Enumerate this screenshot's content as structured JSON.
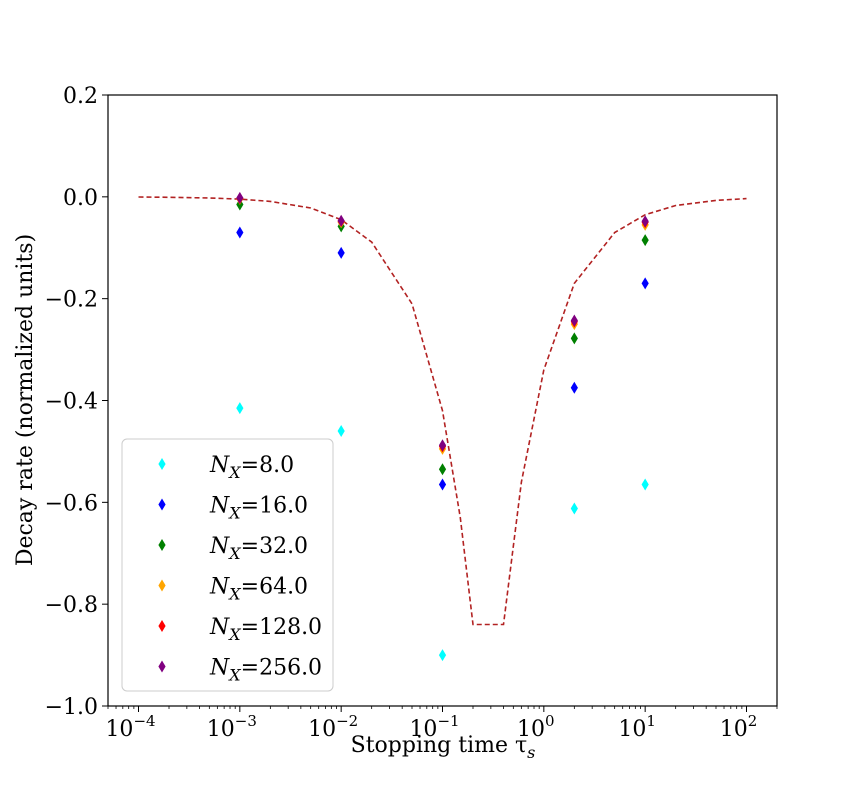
{
  "chart_data": {
    "type": "scatter",
    "title": "",
    "xlabel": "Stopping time τ",
    "xlabel_sub": "s",
    "ylabel": "Decay rate (normalized units)",
    "xscale": "log",
    "xlim": [
      5e-05,
      200
    ],
    "ylim": [
      -1.0,
      0.2
    ],
    "xticks": [
      {
        "value": 0.0001,
        "base": "10",
        "exp": "−4"
      },
      {
        "value": 0.001,
        "base": "10",
        "exp": "−3"
      },
      {
        "value": 0.01,
        "base": "10",
        "exp": "−2"
      },
      {
        "value": 0.1,
        "base": "10",
        "exp": "−1"
      },
      {
        "value": 1,
        "base": "10",
        "exp": "0"
      },
      {
        "value": 10,
        "base": "10",
        "exp": "1"
      },
      {
        "value": 100,
        "base": "10",
        "exp": "2"
      }
    ],
    "yticks": [
      {
        "value": 0.2,
        "label": "0.2"
      },
      {
        "value": 0.0,
        "label": "0.0"
      },
      {
        "value": -0.2,
        "label": "−0.2"
      },
      {
        "value": -0.4,
        "label": "−0.4"
      },
      {
        "value": -0.6,
        "label": "−0.6"
      },
      {
        "value": -0.8,
        "label": "−0.8"
      },
      {
        "value": -1.0,
        "label": "−1.0"
      }
    ],
    "grid": false,
    "legend_position": "lower-left",
    "series": [
      {
        "name": "=8.0",
        "color": "#00ffff",
        "marker": "diamond",
        "x": [
          0.001,
          0.01,
          0.1,
          2,
          10
        ],
        "y": [
          -0.415,
          -0.46,
          -0.9,
          -0.612,
          -0.565
        ]
      },
      {
        "name": "=16.0",
        "color": "#0000ff",
        "marker": "diamond",
        "x": [
          0.001,
          0.01,
          0.1,
          2,
          10
        ],
        "y": [
          -0.07,
          -0.11,
          -0.565,
          -0.375,
          -0.17
        ]
      },
      {
        "name": "=32.0",
        "color": "#008000",
        "marker": "diamond",
        "x": [
          0.001,
          0.01,
          0.1,
          2,
          10
        ],
        "y": [
          -0.015,
          -0.058,
          -0.535,
          -0.278,
          -0.085
        ]
      },
      {
        "name": "=64.0",
        "color": "#ffa500",
        "marker": "diamond",
        "x": [
          0.001,
          0.01,
          0.1,
          2,
          10
        ],
        "y": [
          -0.004,
          -0.05,
          -0.495,
          -0.25,
          -0.055
        ]
      },
      {
        "name": "=128.0",
        "color": "#ff0000",
        "marker": "diamond",
        "x": [
          0.001,
          0.01,
          0.1,
          2,
          10
        ],
        "y": [
          -0.003,
          -0.048,
          -0.49,
          -0.245,
          -0.05
        ]
      },
      {
        "name": "=256.0",
        "color": "#800080",
        "marker": "diamond",
        "x": [
          0.001,
          0.01,
          0.1,
          2,
          10
        ],
        "y": [
          -0.002,
          -0.047,
          -0.488,
          -0.243,
          -0.048
        ]
      }
    ],
    "legend_prefix": "N",
    "legend_prefix_sub": "X",
    "curve": {
      "style": "dashed",
      "color": "#b22222",
      "x": [
        0.0001,
        0.0002,
        0.0005,
        0.001,
        0.002,
        0.005,
        0.01,
        0.02,
        0.05,
        0.1,
        0.15,
        0.2,
        0.4,
        0.6,
        1,
        2,
        5,
        10,
        20,
        50,
        100
      ],
      "y": [
        -0.0004,
        -0.0009,
        -0.0023,
        -0.0045,
        -0.009,
        -0.022,
        -0.045,
        -0.089,
        -0.21,
        -0.42,
        -0.63,
        -0.84,
        -0.84,
        -0.56,
        -0.34,
        -0.17,
        -0.07,
        -0.035,
        -0.017,
        -0.007,
        -0.0035
      ]
    }
  }
}
